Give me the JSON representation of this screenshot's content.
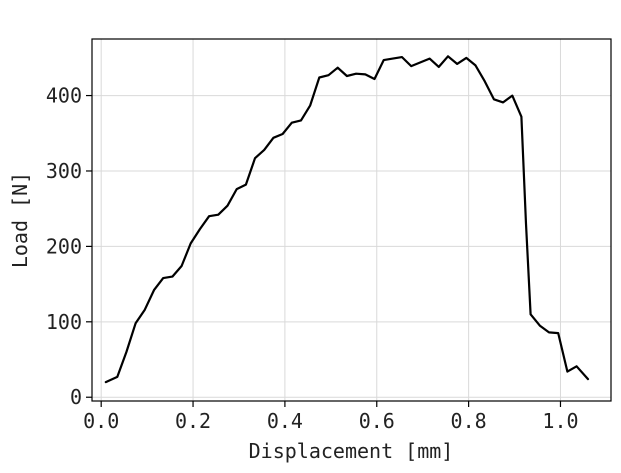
{
  "chart_data": {
    "type": "line",
    "title": "",
    "xlabel": "Displacement [mm]",
    "ylabel": "Load [N]",
    "xlim": [
      -0.02,
      1.11
    ],
    "ylim": [
      -5,
      475
    ],
    "grid": true,
    "legend": "none",
    "xticks": [
      {
        "value": 0.0,
        "label": "0.0"
      },
      {
        "value": 0.2,
        "label": "0.2"
      },
      {
        "value": 0.4,
        "label": "0.4"
      },
      {
        "value": 0.6,
        "label": "0.6"
      },
      {
        "value": 0.8,
        "label": "0.8"
      },
      {
        "value": 1.0,
        "label": "1.0"
      }
    ],
    "yticks": [
      {
        "value": 0,
        "label": "0"
      },
      {
        "value": 100,
        "label": "100"
      },
      {
        "value": 200,
        "label": "200"
      },
      {
        "value": 300,
        "label": "300"
      },
      {
        "value": 400,
        "label": "400"
      }
    ],
    "series": [
      {
        "color": "#000000",
        "x": [
          0.01,
          0.035,
          0.055,
          0.075,
          0.095,
          0.115,
          0.135,
          0.155,
          0.175,
          0.195,
          0.215,
          0.235,
          0.255,
          0.275,
          0.295,
          0.315,
          0.335,
          0.355,
          0.375,
          0.395,
          0.415,
          0.435,
          0.455,
          0.475,
          0.495,
          0.515,
          0.535,
          0.555,
          0.575,
          0.595,
          0.615,
          0.635,
          0.655,
          0.675,
          0.695,
          0.715,
          0.735,
          0.755,
          0.775,
          0.795,
          0.815,
          0.835,
          0.855,
          0.875,
          0.895,
          0.915,
          0.925,
          0.935,
          0.955,
          0.975,
          0.995,
          1.015,
          1.035,
          1.06
        ],
        "y": [
          20,
          27,
          60,
          98,
          116,
          142,
          158,
          160,
          174,
          204,
          223,
          240,
          242,
          254,
          276,
          282,
          317,
          328,
          344,
          349,
          364,
          367,
          387,
          424,
          427,
          437,
          426,
          429,
          428,
          422,
          447,
          449,
          451,
          439,
          444,
          449,
          438,
          452,
          442,
          450,
          440,
          419,
          395,
          391,
          400,
          372,
          230,
          110,
          95,
          86,
          85,
          34,
          41,
          24
        ]
      }
    ]
  }
}
